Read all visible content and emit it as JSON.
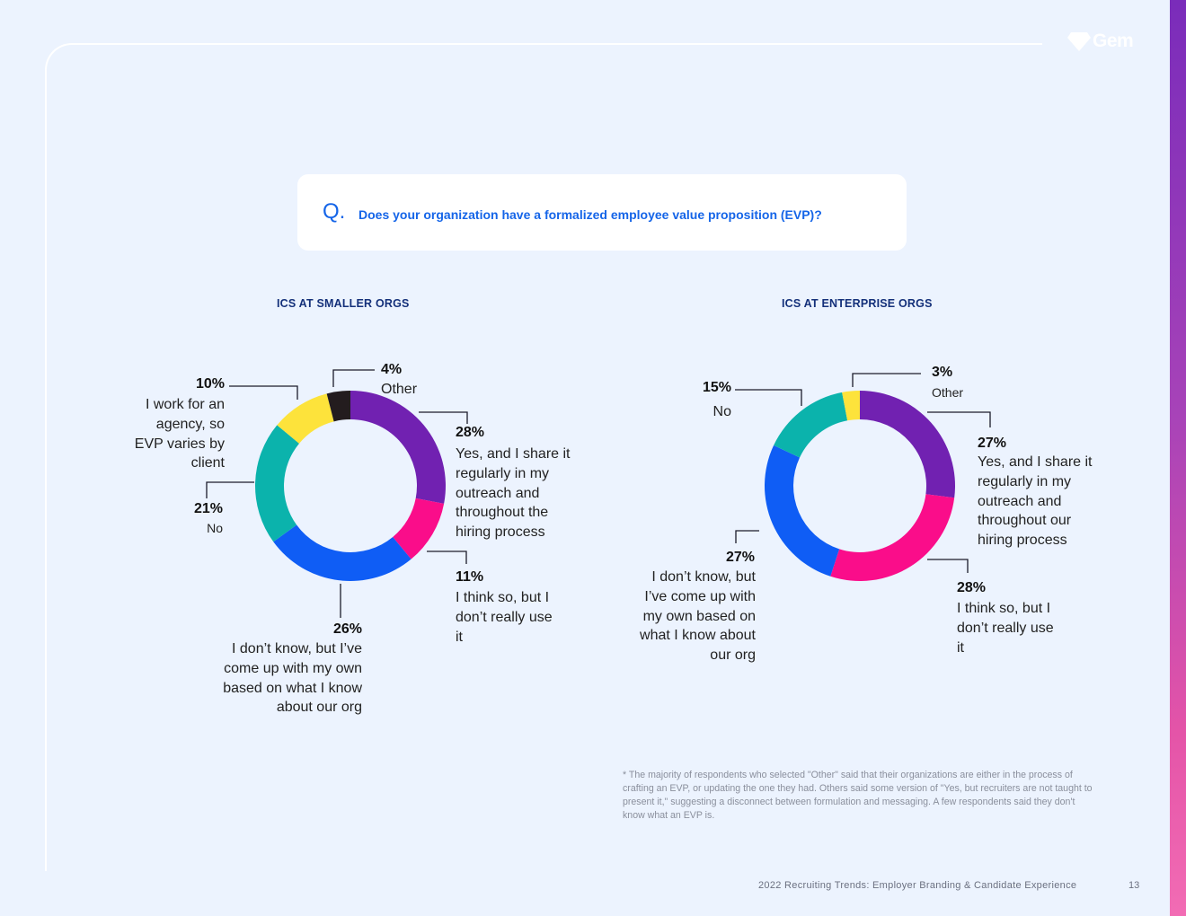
{
  "brand": {
    "logo_text": "Gem",
    "accent": "#1565e8"
  },
  "question": {
    "mark": "Q.",
    "text": "Does your organization have a formalized employee value proposition (EVP)?"
  },
  "chart_data": [
    {
      "type": "pie",
      "title": "ICS AT SMALLER ORGS",
      "donut": true,
      "slices": [
        {
          "pct_label": "28%",
          "label": "Yes, and I share it regularly in my outreach and throughout the hiring process",
          "value": 28,
          "color": "#7121b1"
        },
        {
          "pct_label": "11%",
          "label": "I think so, but I don’t really use it",
          "value": 11,
          "color": "#fa0d8a"
        },
        {
          "pct_label": "26%",
          "label": "I don’t know, but I’ve come up with my own based on what I know about our org",
          "value": 26,
          "color": "#0f5df5"
        },
        {
          "pct_label": "21%",
          "label": "No",
          "value": 21,
          "color": "#0bb3ac"
        },
        {
          "pct_label": "10%",
          "label": "I work for an agency, so EVP varies by client",
          "value": 10,
          "color": "#fde33b"
        },
        {
          "pct_label": "4%",
          "label": "Other",
          "value": 4,
          "color": "#231c1e"
        }
      ]
    },
    {
      "type": "pie",
      "title": "ICS AT ENTERPRISE ORGS",
      "donut": true,
      "slices": [
        {
          "pct_label": "27%",
          "label": "Yes, and I share it regularly in my outreach and throughout our hiring process",
          "value": 27,
          "color": "#7121b1"
        },
        {
          "pct_label": "28%",
          "label": "I think so, but I don’t really use it",
          "value": 28,
          "color": "#fa0d8a"
        },
        {
          "pct_label": "27%",
          "label": "I don’t know, but I’ve come up with my own based on what I know about our org",
          "value": 27,
          "color": "#0f5df5"
        },
        {
          "pct_label": "15%",
          "label": "No",
          "value": 15,
          "color": "#0bb3ac"
        },
        {
          "pct_label": "3%",
          "label": "Other",
          "value": 3,
          "color": "#fde33b"
        }
      ]
    }
  ],
  "footnote": "* The majority of respondents who selected \"Other\" said that their organizations are either in the process of crafting an EVP, or updating the one they had. Others said some version of \"Yes, but recruiters are not taught to present it,\" suggesting a disconnect between formulation and messaging. A few respondents said they don't know what an EVP is.",
  "footer": {
    "title": "2022 Recruiting Trends: Employer Branding & Candidate Experience",
    "page": "13"
  }
}
